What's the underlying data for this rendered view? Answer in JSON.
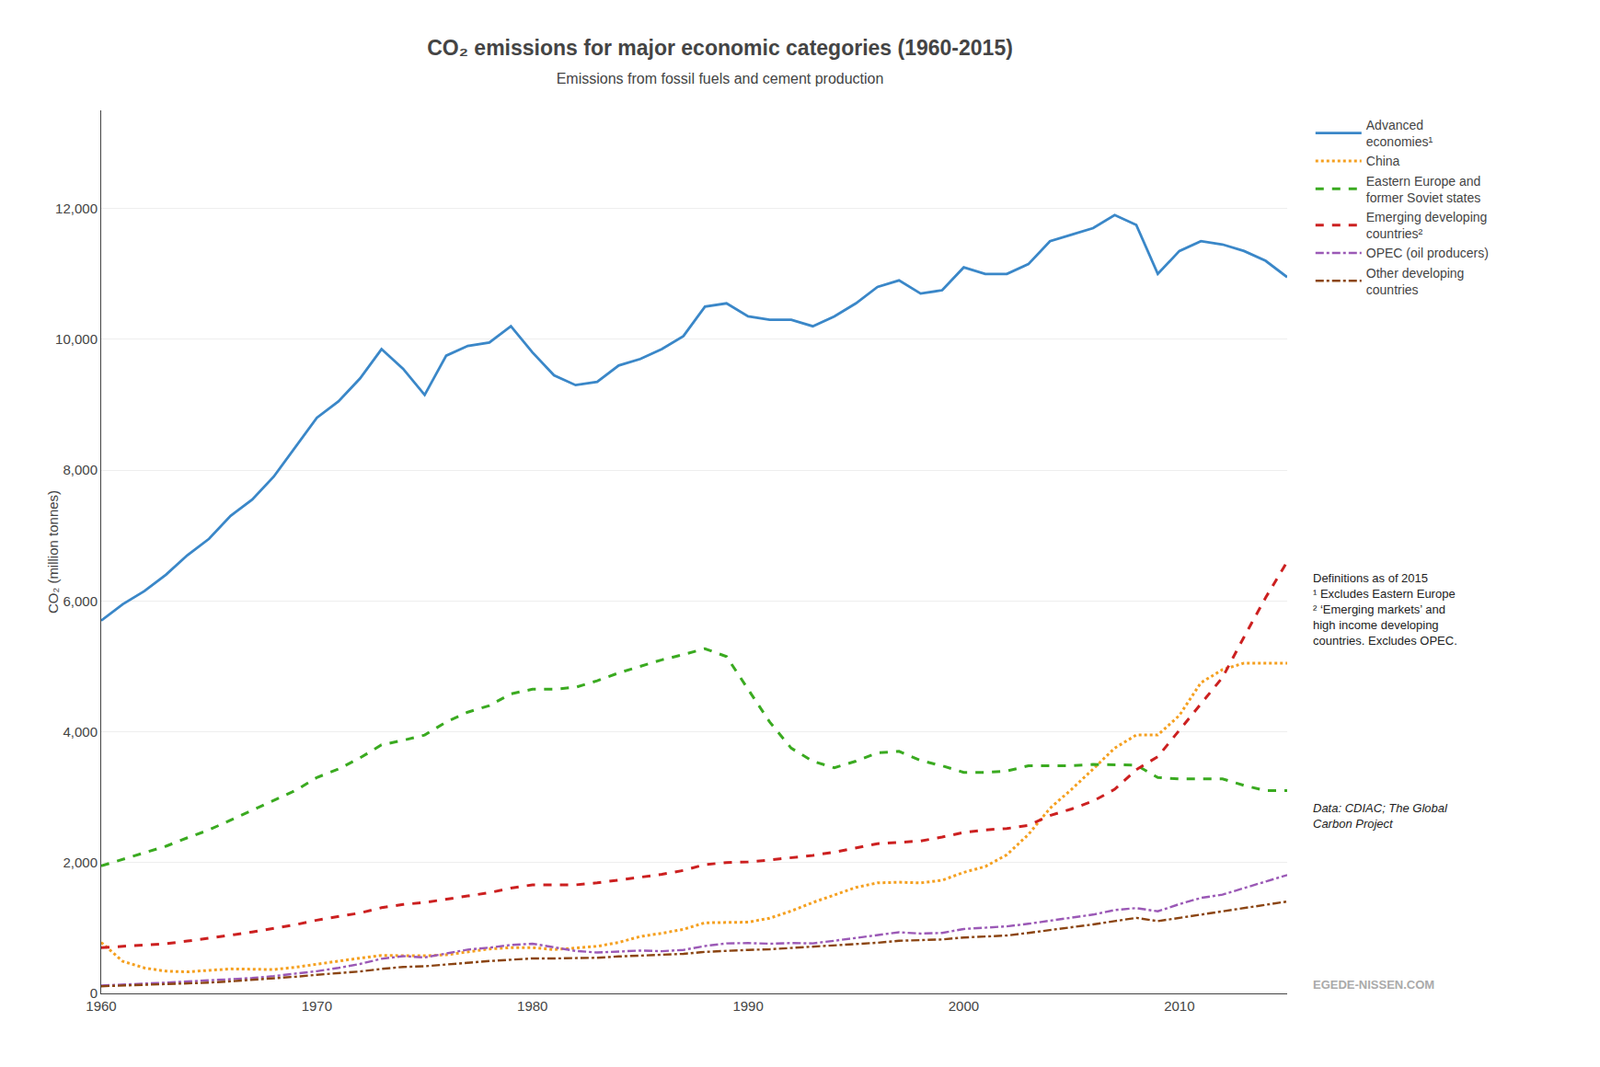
{
  "chart_data": {
    "type": "line",
    "title": "CO₂ emissions for major economic categories (1960-2015)",
    "subtitle": "Emissions from fossil fuels and cement production",
    "ylabel": "CO₂ (million tonnes)",
    "annotations": [
      "Definitions as of 2015\n¹ Excludes Eastern Europe\n² ‘Emerging markets’ and\nhigh income developing\ncountries. Excludes OPEC.",
      "Data: CDIAC; The Global\nCarbon Project",
      "EGEDE-NISSEN.COM"
    ],
    "xlim": [
      1960,
      2015
    ],
    "xticks": [
      1960,
      1970,
      1980,
      1990,
      2000,
      2010
    ],
    "ylim": [
      0,
      13500
    ],
    "yticks": [
      0,
      {
        "value": 2000,
        "label": "2,000"
      },
      {
        "value": 4000,
        "label": "4,000"
      },
      {
        "value": 6000,
        "label": "6,000"
      },
      {
        "value": 8000,
        "label": "8,000"
      },
      {
        "value": 10000,
        "label": "10,000"
      },
      {
        "value": 12000,
        "label": "12,000"
      }
    ],
    "grid": "y",
    "legend": "right",
    "x": [
      1960,
      1961,
      1962,
      1963,
      1964,
      1965,
      1966,
      1967,
      1968,
      1969,
      1970,
      1971,
      1972,
      1973,
      1974,
      1975,
      1976,
      1977,
      1978,
      1979,
      1980,
      1981,
      1982,
      1983,
      1984,
      1985,
      1986,
      1987,
      1988,
      1989,
      1990,
      1991,
      1992,
      1993,
      1994,
      1995,
      1996,
      1997,
      1998,
      1999,
      2000,
      2001,
      2002,
      2003,
      2004,
      2005,
      2006,
      2007,
      2008,
      2009,
      2010,
      2011,
      2012,
      2013,
      2014,
      2015
    ],
    "series": [
      {
        "name": "Advanced\neconomies¹",
        "color": "#3a87c8",
        "line_style": "solid",
        "values": [
          5700,
          5950,
          6150,
          6400,
          6700,
          6950,
          7300,
          7550,
          7900,
          8350,
          8800,
          9050,
          9400,
          9850,
          9550,
          9150,
          9750,
          9900,
          9950,
          10200,
          9800,
          9450,
          9300,
          9350,
          9600,
          9700,
          9850,
          10050,
          10500,
          10550,
          10350,
          10300,
          10300,
          10200,
          10350,
          10550,
          10800,
          10900,
          10700,
          10750,
          11100,
          11000,
          11000,
          11150,
          11500,
          11600,
          11700,
          11900,
          11750,
          11000,
          11350,
          11500,
          11450,
          11350,
          11200,
          10950
        ]
      },
      {
        "name": "China",
        "color": "#f5a020",
        "line_style": "dotted",
        "values": [
          780,
          490,
          390,
          340,
          330,
          350,
          375,
          370,
          365,
          400,
          450,
          500,
          540,
          580,
          575,
          575,
          590,
          640,
          680,
          700,
          700,
          670,
          700,
          720,
          780,
          870,
          920,
          980,
          1080,
          1090,
          1090,
          1150,
          1260,
          1390,
          1510,
          1620,
          1690,
          1700,
          1690,
          1730,
          1850,
          1940,
          2120,
          2430,
          2830,
          3120,
          3430,
          3750,
          3950,
          3950,
          4250,
          4750,
          4950,
          5050,
          5050,
          5050
        ]
      },
      {
        "name": "Eastern Europe and\nformer Soviet states",
        "color": "#3aaa20",
        "line_style": "dashed",
        "values": [
          1950,
          2050,
          2150,
          2250,
          2380,
          2500,
          2650,
          2800,
          2950,
          3100,
          3300,
          3430,
          3600,
          3800,
          3870,
          3950,
          4150,
          4300,
          4400,
          4580,
          4650,
          4650,
          4680,
          4780,
          4900,
          5000,
          5100,
          5180,
          5270,
          5150,
          4650,
          4150,
          3750,
          3550,
          3450,
          3550,
          3680,
          3700,
          3560,
          3480,
          3380,
          3380,
          3400,
          3480,
          3480,
          3480,
          3500,
          3500,
          3490,
          3300,
          3280,
          3280,
          3280,
          3180,
          3100,
          3100
        ]
      },
      {
        "name": "Emerging developing\ncountries²",
        "color": "#cc2020",
        "line_style": "dashed",
        "values": [
          700,
          720,
          740,
          760,
          800,
          840,
          890,
          940,
          990,
          1050,
          1120,
          1170,
          1230,
          1310,
          1360,
          1390,
          1440,
          1490,
          1540,
          1610,
          1660,
          1660,
          1660,
          1690,
          1730,
          1770,
          1820,
          1880,
          1970,
          2000,
          2010,
          2040,
          2070,
          2110,
          2160,
          2220,
          2290,
          2310,
          2330,
          2390,
          2460,
          2500,
          2520,
          2570,
          2720,
          2820,
          2940,
          3120,
          3420,
          3620,
          4020,
          4430,
          4830,
          5450,
          6050,
          6600
        ]
      },
      {
        "name": "OPEC (oil producers)",
        "color": "#9b59b6",
        "line_style": "dashdot",
        "values": [
          120,
          130,
          150,
          165,
          180,
          195,
          215,
          235,
          265,
          300,
          340,
          390,
          450,
          530,
          570,
          550,
          610,
          670,
          700,
          740,
          760,
          710,
          650,
          625,
          645,
          655,
          645,
          665,
          725,
          765,
          770,
          760,
          770,
          765,
          805,
          845,
          895,
          935,
          915,
          925,
          985,
          1005,
          1025,
          1065,
          1110,
          1155,
          1205,
          1275,
          1305,
          1255,
          1365,
          1460,
          1510,
          1610,
          1710,
          1810
        ]
      },
      {
        "name": "Other developing\ncountries",
        "color": "#8B4513",
        "line_style": "dashdot",
        "values": [
          110,
          120,
          130,
          145,
          155,
          165,
          185,
          205,
          225,
          255,
          285,
          305,
          335,
          375,
          405,
          415,
          445,
          475,
          495,
          515,
          535,
          535,
          535,
          545,
          565,
          575,
          585,
          605,
          635,
          655,
          665,
          675,
          695,
          705,
          725,
          745,
          775,
          805,
          815,
          825,
          855,
          865,
          885,
          925,
          965,
          1005,
          1055,
          1105,
          1155,
          1105,
          1155,
          1205,
          1255,
          1305,
          1355,
          1405
        ]
      }
    ]
  }
}
